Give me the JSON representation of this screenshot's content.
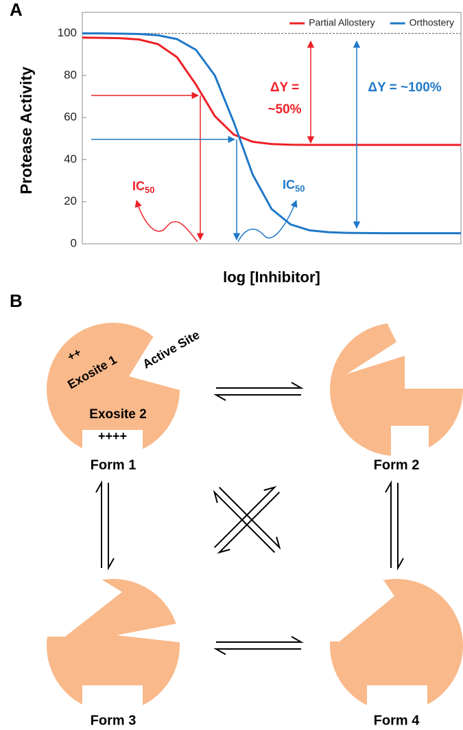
{
  "chart_data": {
    "type": "line",
    "panel_label": "A",
    "xlabel": "log [Inhibitor]",
    "ylabel": "Protease Activity",
    "x": [
      0,
      0.5,
      1,
      1.5,
      2,
      2.5,
      3,
      3.5,
      4,
      4.5,
      5,
      5.5,
      6,
      6.5,
      7,
      7.5,
      8,
      8.5,
      9,
      9.5,
      10
    ],
    "xlim": [
      0,
      10
    ],
    "ylim": [
      0,
      110
    ],
    "yticks": [
      0,
      20,
      40,
      60,
      80,
      100
    ],
    "reference_line": 100,
    "legend": "top-right",
    "series": [
      {
        "name": "Partial Allostery",
        "color": "#ee2027",
        "values": [
          98.0,
          97.9,
          97.7,
          97.1,
          94.9,
          88.7,
          75.7,
          60.7,
          51.9,
          48.5,
          47.4,
          47.1,
          47.0,
          47.0,
          47.0,
          47.0,
          47.0,
          47.0,
          47.0,
          47.0,
          47.0
        ]
      },
      {
        "name": "Orthostery",
        "color": "#1f78c8",
        "values": [
          100.0,
          100.0,
          99.9,
          99.7,
          99.1,
          97.3,
          92.2,
          80.0,
          57.8,
          32.9,
          16.5,
          9.2,
          6.4,
          5.5,
          5.2,
          5.1,
          5.0,
          5.0,
          5.0,
          5.0,
          5.0
        ]
      }
    ],
    "annotations": [
      {
        "text": "ΔY =",
        "color": "#ee2027"
      },
      {
        "text": "~50%",
        "color": "#ee2027"
      },
      {
        "text": "ΔY = ~100%",
        "color": "#1f78c8"
      },
      {
        "text": "IC",
        "subscript": "50",
        "color": "#ee2027"
      },
      {
        "text": "IC",
        "subscript": "50",
        "color": "#1f78c8"
      }
    ]
  },
  "panel_b": {
    "label": "B",
    "sites": {
      "active_site": "Active Site",
      "exosite_1": "Exosite 1",
      "exosite_2": "Exosite 2",
      "charges_1": "++",
      "charges_2": "++++"
    },
    "forms": [
      {
        "label": "Form 1"
      },
      {
        "label": "Form 2"
      },
      {
        "label": "Form 3"
      },
      {
        "label": "Form 4"
      }
    ]
  }
}
